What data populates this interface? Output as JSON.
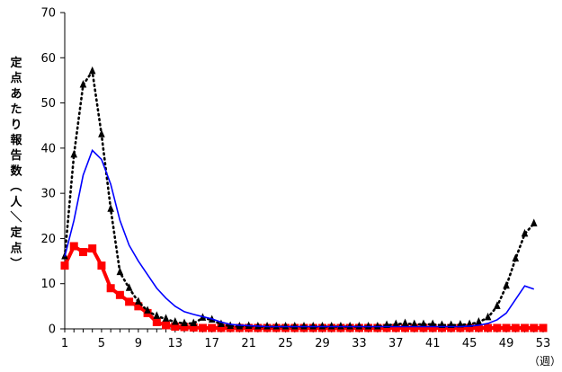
{
  "chart_data": {
    "type": "line",
    "title": "",
    "xlabel": "（週）",
    "ylabel": "定点あたり報告数（人／定点）",
    "ylim": [
      0,
      70
    ],
    "yticks": [
      0,
      10,
      20,
      30,
      40,
      50,
      60,
      70
    ],
    "xlim": [
      1,
      53
    ],
    "xticks": [
      1,
      5,
      9,
      13,
      17,
      21,
      25,
      29,
      33,
      37,
      41,
      45,
      49,
      53
    ],
    "grid": false,
    "legend": "none",
    "series": [
      {
        "color": "#ff0000",
        "style": "solid-thick",
        "marker": "square",
        "x": [
          1,
          2,
          3,
          4,
          5,
          6,
          7,
          8,
          9,
          10,
          11,
          12,
          13,
          14,
          15,
          16,
          17,
          18,
          19,
          20,
          21,
          22,
          23,
          24,
          25,
          26,
          27,
          28,
          29,
          30,
          31,
          32,
          33,
          34,
          35,
          36,
          37,
          38,
          39,
          40,
          41,
          42,
          43,
          44,
          45,
          46,
          47,
          48,
          49,
          50,
          51,
          52,
          53
        ],
        "values": [
          14.0,
          18.3,
          17.0,
          17.8,
          14.0,
          9.0,
          7.5,
          6.0,
          5.0,
          3.5,
          1.5,
          0.8,
          0.5,
          0.4,
          0.3,
          0.2,
          0.2,
          0.2,
          0.2,
          0.2,
          0.2,
          0.2,
          0.2,
          0.2,
          0.2,
          0.2,
          0.2,
          0.2,
          0.2,
          0.2,
          0.2,
          0.2,
          0.2,
          0.2,
          0.2,
          0.2,
          0.2,
          0.2,
          0.2,
          0.2,
          0.2,
          0.2,
          0.2,
          0.2,
          0.2,
          0.2,
          0.2,
          0.2,
          0.2,
          0.2,
          0.2,
          0.2,
          0.2
        ]
      },
      {
        "color": "#000000",
        "style": "dotted",
        "marker": "triangle",
        "x": [
          1,
          2,
          3,
          4,
          5,
          6,
          7,
          8,
          9,
          10,
          11,
          12,
          13,
          14,
          15,
          16,
          17,
          18,
          19,
          20,
          21,
          22,
          23,
          24,
          25,
          26,
          27,
          28,
          29,
          30,
          31,
          32,
          33,
          34,
          35,
          36,
          37,
          38,
          39,
          40,
          41,
          42,
          43,
          44,
          45,
          46,
          47,
          48,
          49,
          50,
          51,
          52
        ],
        "values": [
          16.0,
          38.5,
          54.0,
          57.0,
          43.0,
          26.5,
          12.5,
          9.0,
          6.0,
          4.0,
          2.8,
          2.2,
          1.5,
          1.2,
          1.2,
          2.4,
          2.0,
          1.0,
          0.6,
          0.5,
          0.6,
          0.5,
          0.5,
          0.5,
          0.5,
          0.5,
          0.5,
          0.5,
          0.5,
          0.5,
          0.5,
          0.5,
          0.5,
          0.5,
          0.5,
          0.8,
          1.0,
          1.2,
          1.0,
          1.0,
          1.0,
          0.8,
          0.8,
          0.9,
          1.0,
          1.5,
          2.5,
          5.0,
          9.5,
          15.5,
          21.0,
          23.3
        ]
      },
      {
        "color": "#0000ff",
        "style": "solid",
        "marker": "none",
        "x": [
          1,
          2,
          3,
          4,
          5,
          6,
          7,
          8,
          9,
          10,
          11,
          12,
          13,
          14,
          15,
          16,
          17,
          18,
          19,
          20,
          21,
          22,
          23,
          24,
          25,
          26,
          27,
          28,
          29,
          30,
          31,
          32,
          33,
          34,
          35,
          36,
          37,
          38,
          39,
          40,
          41,
          42,
          43,
          44,
          45,
          46,
          47,
          48,
          49,
          50,
          51,
          52
        ],
        "values": [
          16.0,
          24.0,
          34.0,
          39.5,
          37.5,
          32.0,
          24.0,
          18.5,
          15.0,
          12.0,
          9.0,
          6.8,
          5.0,
          3.8,
          3.2,
          2.7,
          2.2,
          1.5,
          1.0,
          0.8,
          0.7,
          0.6,
          0.5,
          0.5,
          0.5,
          0.5,
          0.5,
          0.5,
          0.5,
          0.5,
          0.5,
          0.5,
          0.5,
          0.5,
          0.5,
          0.5,
          0.5,
          0.5,
          0.5,
          0.5,
          0.5,
          0.5,
          0.5,
          0.5,
          0.6,
          0.8,
          1.2,
          2.0,
          3.5,
          6.5,
          9.5,
          8.8
        ]
      }
    ]
  }
}
